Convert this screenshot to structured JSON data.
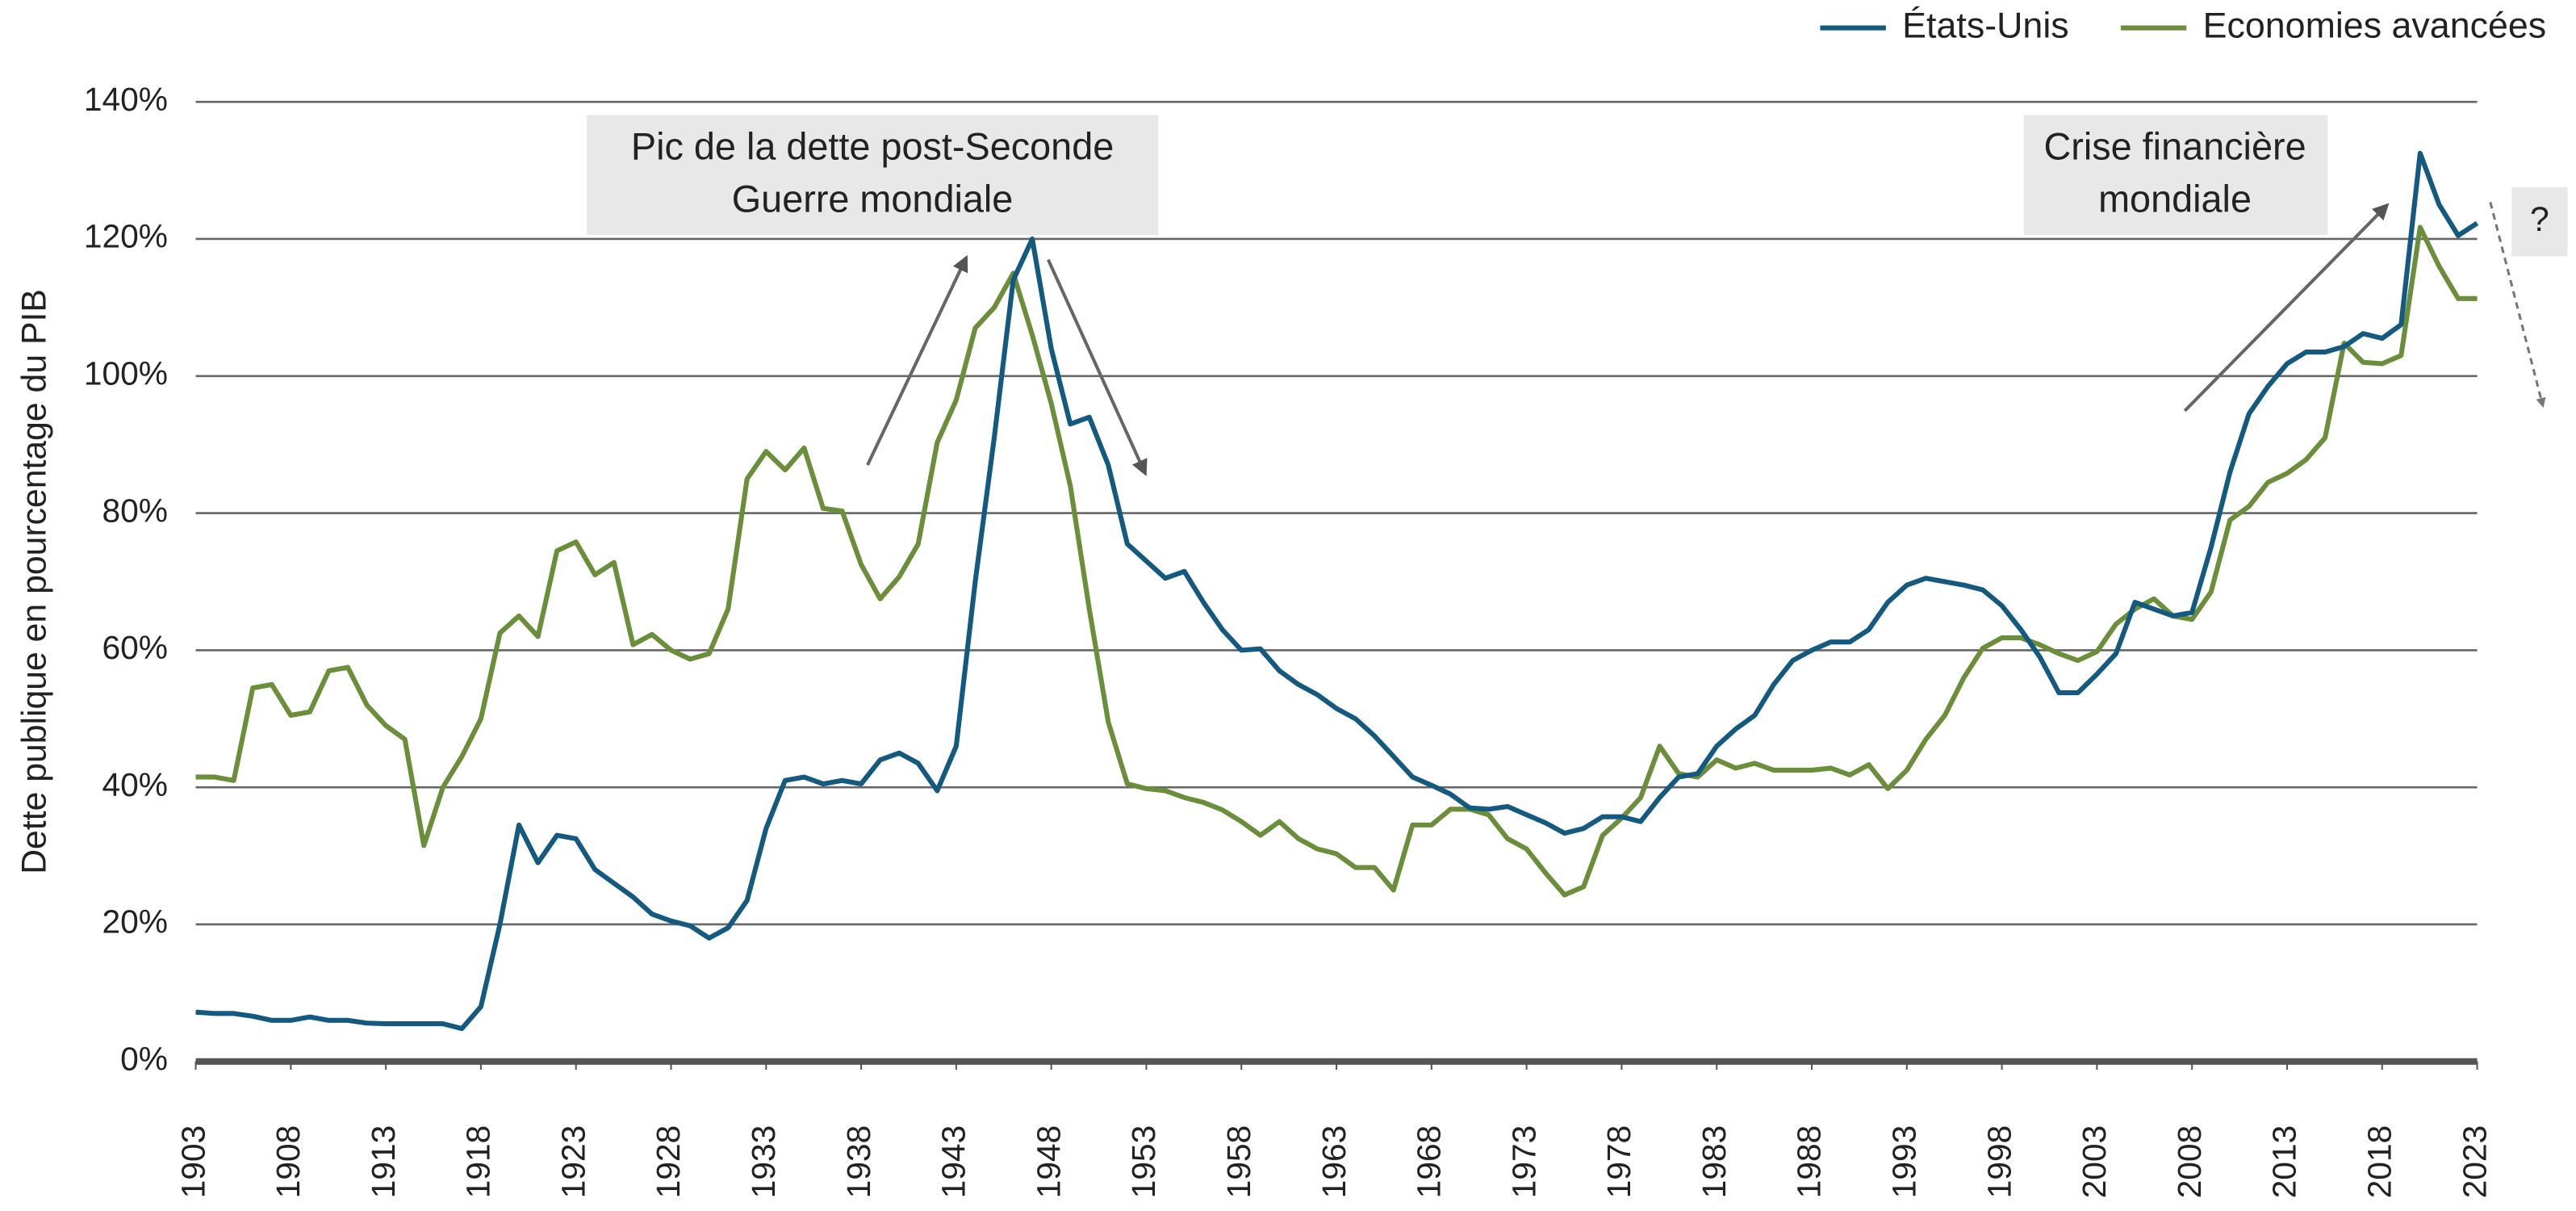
{
  "chart_data": {
    "type": "line",
    "y_label": "Dette publique en pourcentage du PIB",
    "xlim": [
      1903,
      2023
    ],
    "xticks": [
      1903,
      1908,
      1913,
      1918,
      1923,
      1928,
      1933,
      1938,
      1943,
      1948,
      1953,
      1958,
      1963,
      1968,
      1973,
      1978,
      1983,
      1988,
      1993,
      1998,
      2003,
      2008,
      2013,
      2018,
      2023
    ],
    "ylim": [
      0,
      140
    ],
    "yticks": [
      {
        "value": 0,
        "label": "0%"
      },
      {
        "value": 20,
        "label": "20%"
      },
      {
        "value": 40,
        "label": "40%"
      },
      {
        "value": 60,
        "label": "60%"
      },
      {
        "value": 80,
        "label": "80%"
      },
      {
        "value": 100,
        "label": "100%"
      },
      {
        "value": 120,
        "label": "120%"
      },
      {
        "value": 140,
        "label": "140%"
      }
    ],
    "grid": true,
    "legend": "top-right",
    "x": [
      1903,
      1904,
      1905,
      1906,
      1907,
      1908,
      1909,
      1910,
      1911,
      1912,
      1913,
      1914,
      1915,
      1916,
      1917,
      1918,
      1919,
      1920,
      1921,
      1922,
      1923,
      1924,
      1925,
      1926,
      1927,
      1928,
      1929,
      1930,
      1931,
      1932,
      1933,
      1934,
      1935,
      1936,
      1937,
      1938,
      1939,
      1940,
      1941,
      1942,
      1943,
      1944,
      1945,
      1946,
      1947,
      1948,
      1949,
      1950,
      1951,
      1952,
      1953,
      1954,
      1955,
      1956,
      1957,
      1958,
      1959,
      1960,
      1961,
      1962,
      1963,
      1964,
      1965,
      1966,
      1967,
      1968,
      1969,
      1970,
      1971,
      1972,
      1973,
      1974,
      1975,
      1976,
      1977,
      1978,
      1979,
      1980,
      1981,
      1982,
      1983,
      1984,
      1985,
      1986,
      1987,
      1988,
      1989,
      1990,
      1991,
      1992,
      1993,
      1994,
      1995,
      1996,
      1997,
      1998,
      1999,
      2000,
      2001,
      2002,
      2003,
      2004,
      2005,
      2006,
      2007,
      2008,
      2009,
      2010,
      2011,
      2012,
      2013,
      2014,
      2015,
      2016,
      2017,
      2018,
      2019,
      2020,
      2021,
      2022,
      2023
    ],
    "series": [
      {
        "name": "États-Unis",
        "color": "#145a80",
        "values": [
          7.2,
          7,
          7,
          6.6,
          6,
          6,
          6.5,
          6,
          6,
          5.6,
          5.5,
          5.5,
          5.5,
          5.5,
          4.8,
          8,
          20,
          34.5,
          29,
          33,
          32.5,
          28,
          26,
          24,
          21.5,
          20.5,
          19.8,
          18,
          19.5,
          23.5,
          34,
          41,
          41.5,
          40.5,
          41,
          40.5,
          44,
          45,
          43.5,
          39.5,
          46,
          70,
          91,
          114,
          120,
          104,
          93,
          94,
          87,
          75.5,
          73,
          70.5,
          71.5,
          67,
          63,
          60,
          60.2,
          57,
          55,
          53.5,
          51.5,
          50,
          47.5,
          44.5,
          41.5,
          40.3,
          39,
          37,
          36.8,
          37.2,
          36,
          34.8,
          33.3,
          34,
          35.7,
          35.7,
          35,
          38.5,
          41.5,
          42,
          46,
          48.5,
          50.5,
          55,
          58.5,
          60,
          61.2,
          61.2,
          63,
          67,
          69.5,
          70.5,
          70,
          69.5,
          68.8,
          66.5,
          63,
          59,
          53.8,
          53.8,
          56.5,
          59.5,
          67,
          66,
          65,
          65.5,
          75,
          86,
          94.5,
          98.5,
          101.8,
          103.5,
          103.5,
          104.3,
          106.2,
          105.5,
          107.5,
          132.5,
          125,
          120.5,
          122.3
        ]
      },
      {
        "name": "Economies avancées",
        "color": "#6b8e3a",
        "values": [
          41.5,
          41.5,
          41,
          54.5,
          55,
          50.5,
          51,
          57,
          57.5,
          52,
          49,
          47,
          31.5,
          40,
          44.5,
          50,
          62.5,
          65,
          62,
          74.5,
          75.8,
          71,
          72.8,
          60.8,
          62.3,
          60,
          58.7,
          59.5,
          66,
          85,
          89,
          86.3,
          89.5,
          80.7,
          80.3,
          72.5,
          67.5,
          70.7,
          75.5,
          90.3,
          96.5,
          107,
          110,
          115,
          106,
          96,
          84,
          66,
          49.5,
          40.5,
          39.8,
          39.5,
          38.5,
          37.8,
          36.7,
          35,
          33,
          35,
          32.5,
          31,
          30.3,
          28.3,
          28.3,
          25,
          34.5,
          34.5,
          36.8,
          36.8,
          36,
          32.5,
          31,
          27.5,
          24.3,
          25.5,
          33,
          35.5,
          38.5,
          46,
          42,
          41.5,
          44,
          42.8,
          43.5,
          42.5,
          42.5,
          42.5,
          42.8,
          41.8,
          43.3,
          39.8,
          42.5,
          47,
          50.5,
          56,
          60.3,
          61.8,
          61.8,
          60.8,
          59.5,
          58.5,
          59.8,
          63.8,
          66,
          67.5,
          65,
          64.5,
          68.5,
          79,
          81,
          84.5,
          85.8,
          87.8,
          91,
          104.8,
          102,
          101.8,
          103,
          121.7,
          116,
          111.3,
          111.3
        ]
      }
    ],
    "annotations": [
      {
        "text": [
          "Pic de la dette post-Seconde",
          "Guerre mondiale"
        ]
      },
      {
        "text": [
          "Crise financière",
          "mondiale"
        ]
      },
      {
        "text": [
          "?"
        ]
      }
    ]
  }
}
